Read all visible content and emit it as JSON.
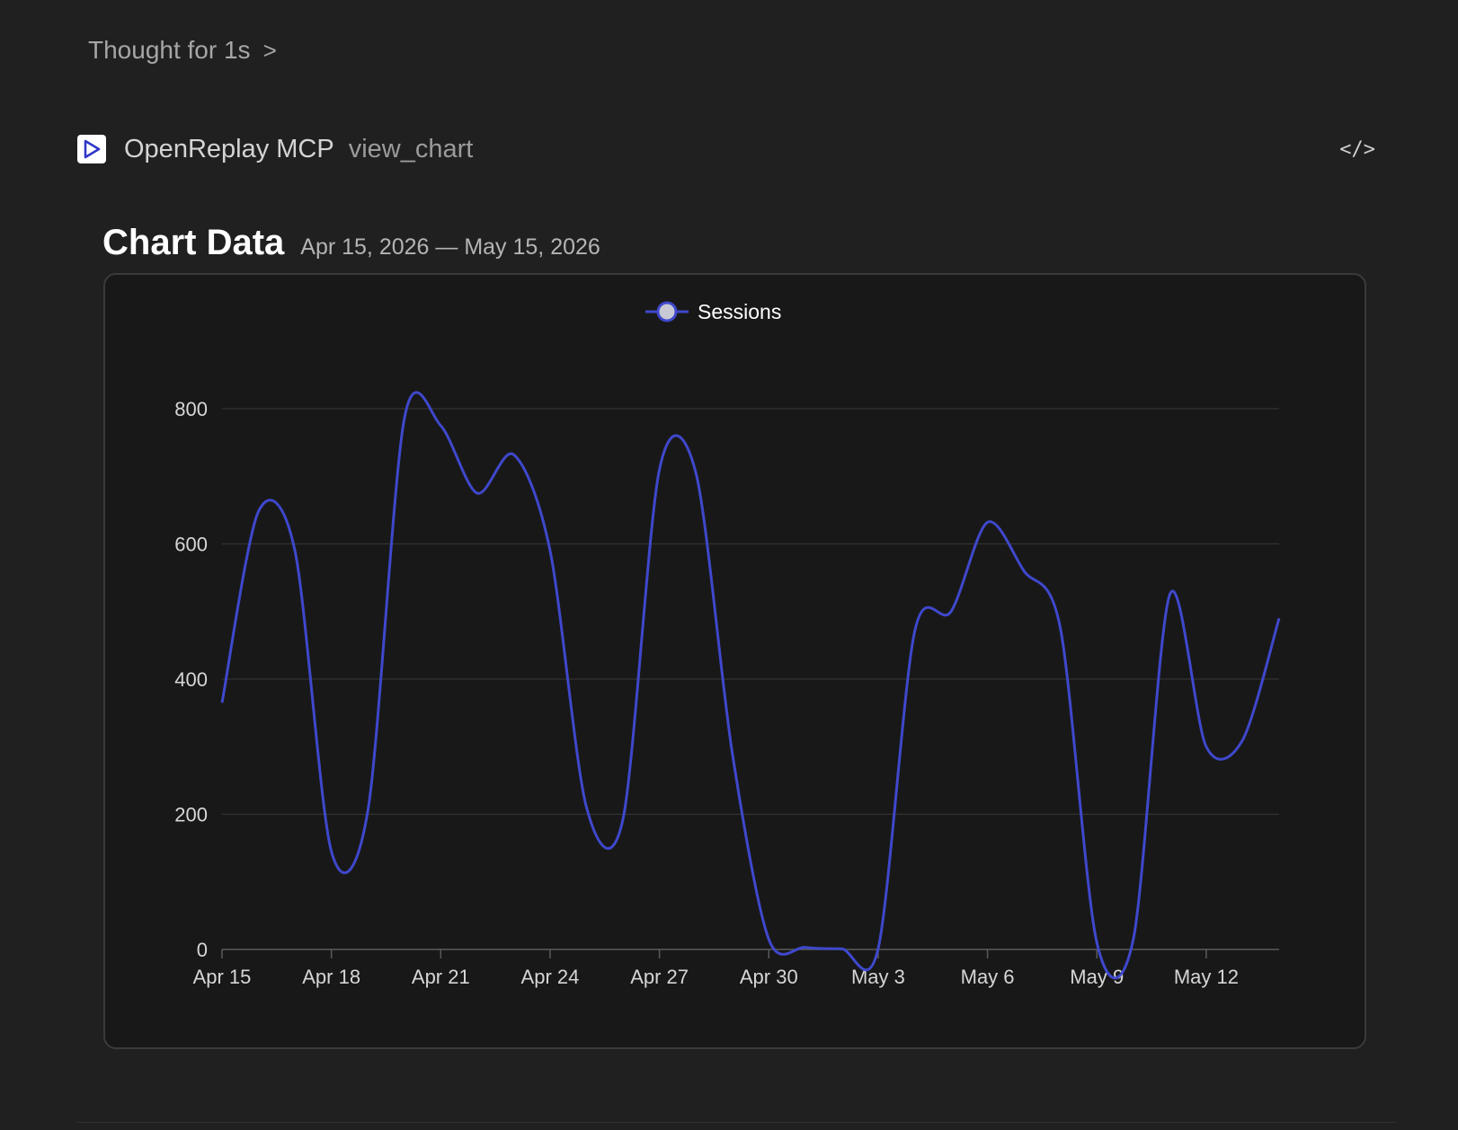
{
  "thought": {
    "label": "Thought for 1s",
    "chevron": ">"
  },
  "tool": {
    "app_name": "OpenReplay MCP",
    "function_name": "view_chart",
    "code_icon": "</>"
  },
  "chart_header": {
    "title": "Chart Data",
    "range": "Apr 15, 2026 — May 15, 2026"
  },
  "colors": {
    "series": "#3f48cc",
    "legend_marker_fill": "#c9c9d6",
    "background": "#202020",
    "card": "#181818"
  },
  "chart_data": {
    "type": "line",
    "smooth": true,
    "legend": {
      "position": "top-center",
      "entries": [
        "Sessions"
      ]
    },
    "grid": true,
    "x_tick_labels": [
      "Apr 15",
      "Apr 18",
      "Apr 21",
      "Apr 24",
      "Apr 27",
      "Apr 30",
      "May 3",
      "May 6",
      "May 9",
      "May 12"
    ],
    "y_tick_labels": [
      "0",
      "200",
      "400",
      "600",
      "800"
    ],
    "ylim": [
      0,
      800
    ],
    "series": [
      {
        "name": "Sessions",
        "x": [
          "Apr 15",
          "Apr 16",
          "Apr 17",
          "Apr 18",
          "Apr 19",
          "Apr 20",
          "Apr 21",
          "Apr 22",
          "Apr 23",
          "Apr 24",
          "Apr 25",
          "Apr 26",
          "Apr 27",
          "Apr 28",
          "Apr 29",
          "Apr 30",
          "May 1",
          "May 2",
          "May 3",
          "May 4",
          "May 5",
          "May 6",
          "May 7",
          "May 8",
          "May 9",
          "May 10",
          "May 11",
          "May 12",
          "May 13",
          "May 14"
        ],
        "values": [
          365,
          648,
          590,
          145,
          205,
          785,
          775,
          675,
          732,
          590,
          210,
          193,
          710,
          705,
          290,
          15,
          3,
          1,
          1,
          470,
          500,
          632,
          560,
          475,
          10,
          15,
          525,
          300,
          310,
          490
        ]
      }
    ]
  }
}
